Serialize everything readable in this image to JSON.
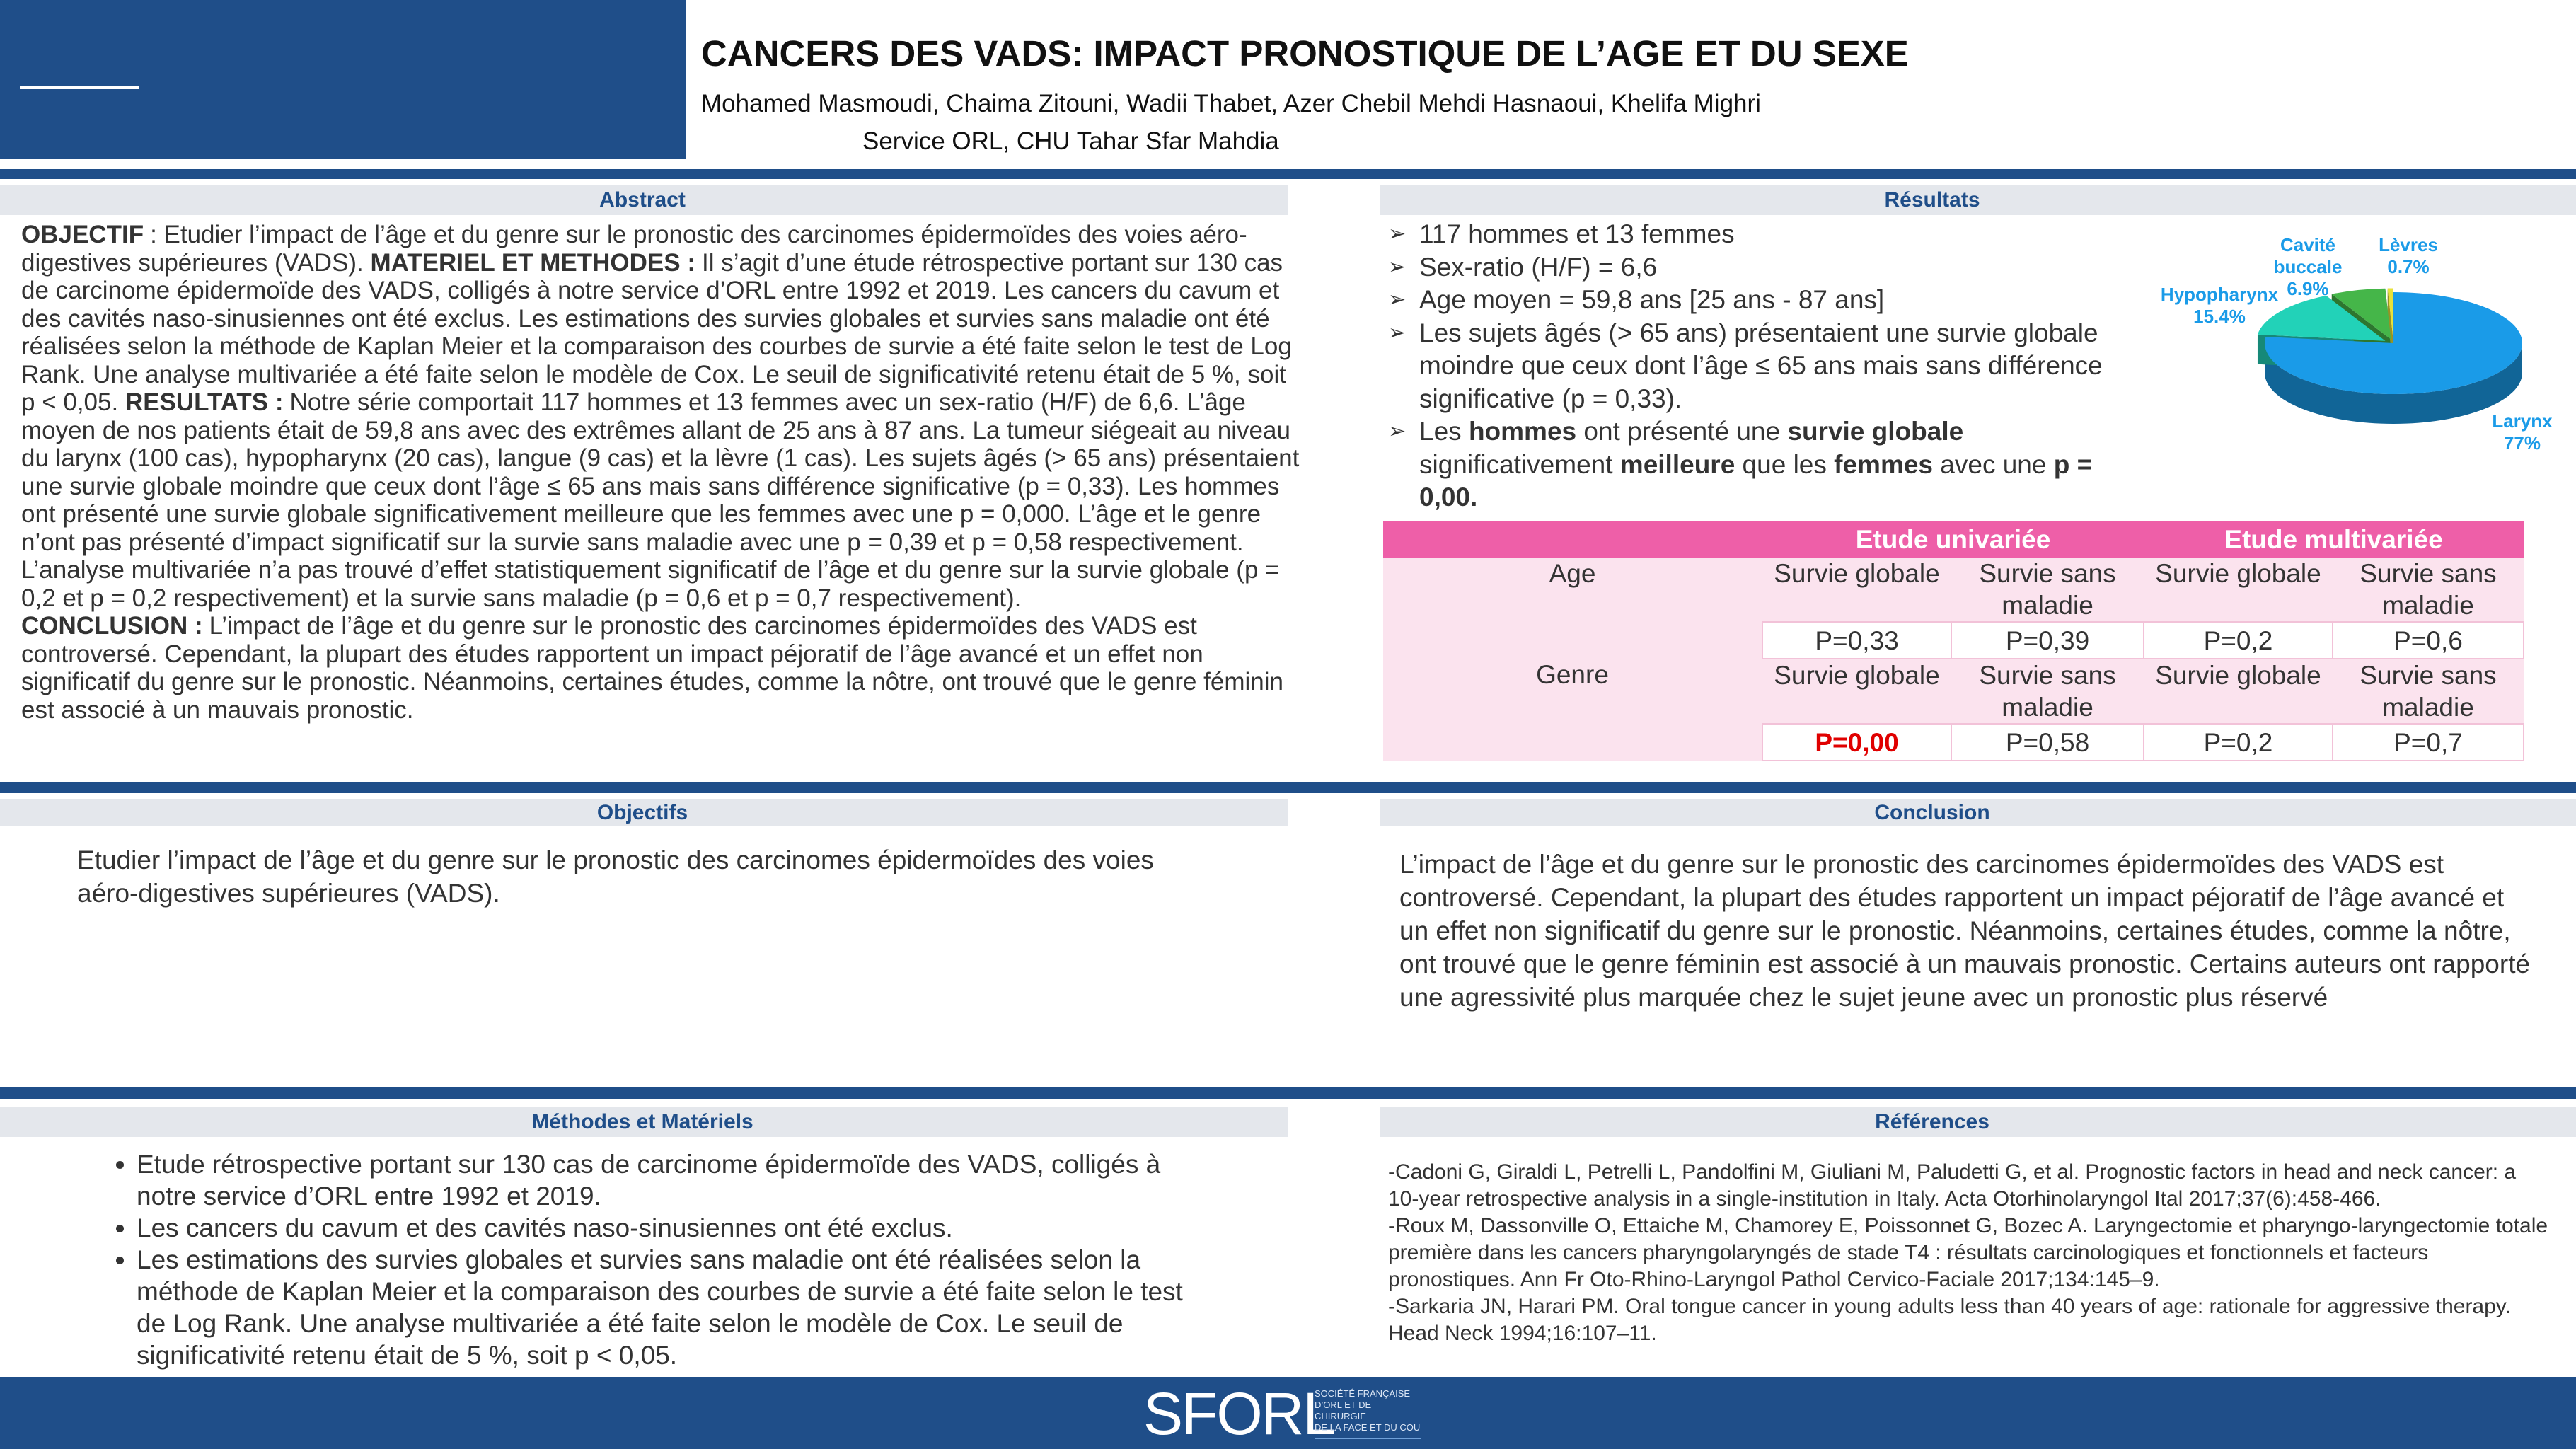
{
  "header": {
    "title": "CANCERS DES VADS: IMPACT PRONOSTIQUE DE L’AGE ET DU SEXE",
    "authors": "Mohamed Masmoudi, Chaima Zitouni, Wadii Thabet, Azer Chebil Mehdi Hasnaoui, Khelifa Mighri",
    "affiliation": "Service ORL, CHU Tahar Sfar Mahdia"
  },
  "abstract": {
    "title": "Abstract",
    "paragraphs": [
      [
        {
          "heading": "OBJECTIF",
          "text": ": Etudier l’impact de l’âge et du genre sur le pronostic des carcinomes épidermoïdes des voies aéro-digestives supérieures (VADS)."
        },
        {
          "heading": "MATERIEL ET METHODES :",
          "text": "Il s’agit d’une étude rétrospective portant sur 130 cas de carcinome épidermoïde des VADS, colligés à notre service d’ORL entre 1992 et 2019. Les cancers du cavum et des cavités naso-sinusiennes ont été exclus. Les estimations des survies globales et survies sans maladie ont été réalisées selon la méthode de Kaplan Meier et la comparaison des courbes de survie a été faite selon le test de Log Rank. Une analyse multivariée a été faite selon le modèle de Cox. Le seuil de significativité retenu était de 5 %, soit p < 0,05."
        },
        {
          "heading": "RESULTATS :",
          "text": "Notre série comportait 117 hommes et 13 femmes avec un sex-ratio (H/F) de 6,6. L’âge moyen de nos patients était de 59,8 ans avec des extrêmes allant de 25 ans à 87 ans. La tumeur siégeait au niveau du larynx (100 cas), hypopharynx (20 cas), langue (9 cas) et la lèvre (1 cas). Les sujets âgés (> 65 ans) présentaient une survie globale moindre que ceux dont l’âge ≤ 65 ans mais sans différence significative (p = 0,33). Les hommes ont présenté une survie globale significativement meilleure que les femmes avec une p = 0,000. L’âge et le genre n’ont pas présenté d’impact significatif sur la survie sans maladie avec une p = 0,39 et p = 0,58 respectivement. L’analyse multivariée n’a pas trouvé d’effet statistiquement significatif de l’âge et du genre sur la survie globale (p = 0,2 et p = 0,2 respectivement) et la survie sans maladie (p = 0,6 et p = 0,7 respectivement)."
        }
      ],
      [
        {
          "heading": "CONCLUSION :",
          "text": "L’impact de l’âge et du genre sur le pronostic des carcinomes épidermoïdes des VADS est controversé. Cependant, la plupart des études rapportent un impact péjoratif de l’âge avancé et un effet non significatif du genre sur le pronostic. Néanmoins, certaines études, comme la nôtre, ont trouvé que le genre féminin est associé à un mauvais pronostic."
        }
      ]
    ]
  },
  "results": {
    "title": "Résultats",
    "items": [
      [
        {
          "text": "117 hommes et 13 femmes"
        }
      ],
      [
        {
          "text": "Sex-ratio (H/F) = 6,6"
        }
      ],
      [
        {
          "text": "Age moyen = 59,8 ans [25 ans - 87 ans]"
        }
      ],
      [
        {
          "text": "Les sujets âgés (> 65 ans) présentaient une survie globale moindre que ceux dont l’âge ≤ 65 ans mais sans différence significative (p = 0,33)."
        }
      ],
      [
        {
          "text": "Les "
        },
        {
          "text": "hommes",
          "bold": true
        },
        {
          "text": " ont présenté une "
        },
        {
          "text": "survie globale",
          "bold": true
        },
        {
          "text": " significativement "
        },
        {
          "text": "meilleure",
          "bold": true
        },
        {
          "text": " que les "
        },
        {
          "text": "femmes",
          "bold": true
        },
        {
          "text": " avec une "
        },
        {
          "text": "p = 0,00.",
          "bold": true
        }
      ]
    ],
    "table": {
      "headers": [
        "Etude univariée",
        "Etude multivariée"
      ],
      "highlight_color": "#e00000",
      "rows": [
        {
          "label": "Age",
          "measures": [
            "Survie globale",
            "Survie sans maladie",
            "Survie globale",
            "Survie sans maladie"
          ],
          "values": [
            "P=0,33",
            "P=0,39",
            "P=0,2",
            "P=0,6"
          ]
        },
        {
          "label": "Genre",
          "measures": [
            "Survie globale",
            "Survie sans maladie",
            "Survie globale",
            "Survie sans maladie"
          ],
          "values": [
            "P=0,00",
            "P=0,58",
            "P=0,2",
            "P=0,7"
          ],
          "highlight": 0
        }
      ]
    }
  },
  "chart_data": {
    "type": "pie",
    "categories": [
      "Larynx",
      "Hypopharynx",
      "Cavité buccale",
      "Lèvres"
    ],
    "values": [
      77,
      15.4,
      6.9,
      0.7
    ],
    "value_labels": [
      "77%",
      "15.4%",
      "6.9%",
      "0.7%"
    ],
    "colors": [
      "#1a9be8",
      "#22d2b8",
      "#45b649",
      "#e8e23a"
    ],
    "label_color": "#1a9be8"
  },
  "objectives": {
    "title": "Objectifs",
    "text": "Etudier l’impact de l’âge et du genre sur le pronostic des carcinomes épidermoïdes des voies aéro-digestives supérieures (VADS)."
  },
  "conclusion": {
    "title": "Conclusion",
    "text": "L’impact de l’âge et du genre sur le pronostic des carcinomes épidermoïdes des VADS est controversé. Cependant, la plupart des études rapportent un impact péjoratif de l’âge avancé et un effet non significatif du genre sur le pronostic. Néanmoins, certaines études, comme la nôtre, ont trouvé que le genre féminin est associé à un mauvais pronostic. Certains auteurs ont rapporté une agressivité plus marquée chez le sujet jeune avec un pronostic plus réservé"
  },
  "methods": {
    "title": "Méthodes et Matériels",
    "items": [
      "Etude rétrospective portant sur 130 cas de carcinome épidermoïde des VADS, colligés à notre service d’ORL entre 1992 et 2019.",
      "Les cancers du cavum et des cavités naso-sinusiennes ont été exclus.",
      "Les estimations des survies globales et survies sans maladie ont été réalisées selon la méthode de Kaplan Meier et la comparaison des courbes de survie a été faite selon le test de Log Rank. Une analyse multivariée a été faite selon le modèle de Cox. Le seuil de significativité retenu était de 5 %, soit p < 0,05."
    ]
  },
  "references": {
    "title": "Références",
    "items": [
      "-Cadoni G, Giraldi L, Petrelli L, Pandolfini M, Giuliani M, Paludetti G, et al. Prognostic factors in head and neck cancer: a 10-year retrospective analysis in a single-institution in Italy. Acta Otorhinolaryngol Ital 2017;37(6):458-466.",
      "-Roux M, Dassonville O, Ettaiche M, Chamorey E, Poissonnet G, Bozec A. Laryngectomie et pharyngo-laryngectomie totale première dans les cancers pharyngolaryngés de stade T4 : résultats carcinologiques et fonctionnels et facteurs pronostiques. Ann Fr Oto-Rhino-Laryngol Pathol Cervico-Faciale 2017;134:145–9.",
      "-Sarkaria JN, Harari PM. Oral tongue cancer in young adults less than 40 years of age: rationale for aggressive therapy. Head Neck 1994;16:107–11."
    ]
  },
  "footer": {
    "logo": "SFORL",
    "society_lines": [
      "SOCIÉTÉ FRANÇAISE",
      "D’ORL ET DE CHIRURGIE",
      "DE LA FACE ET DU COU"
    ]
  }
}
